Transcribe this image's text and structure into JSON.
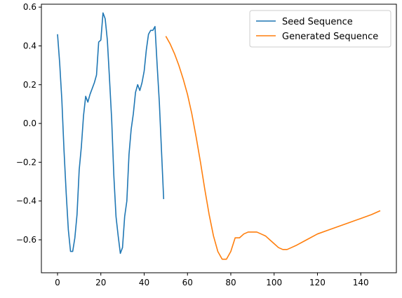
{
  "chart_data": {
    "type": "line",
    "title": "",
    "xlabel": "",
    "ylabel": "",
    "xlim": [
      -7.45,
      156.45
    ],
    "ylim": [
      -0.77,
      0.615
    ],
    "xticks": [
      0,
      20,
      40,
      60,
      80,
      100,
      120,
      140
    ],
    "yticks": [
      -0.6,
      -0.4,
      -0.2,
      0.0,
      0.2,
      0.4,
      0.6
    ],
    "ytick_labels": [
      "−0.6",
      "−0.4",
      "−0.2",
      "0.0",
      "0.2",
      "0.4",
      "0.6"
    ],
    "grid": false,
    "legend_position": "top-right",
    "series": [
      {
        "name": "Seed Sequence",
        "color": "#1f77b4",
        "x": [
          0,
          1,
          2,
          3,
          4,
          5,
          6,
          7,
          8,
          9,
          10,
          11,
          12,
          13,
          14,
          15,
          16,
          17,
          18,
          19,
          20,
          21,
          22,
          23,
          24,
          25,
          26,
          27,
          28,
          29,
          30,
          31,
          32,
          33,
          34,
          35,
          36,
          37,
          38,
          39,
          40,
          41,
          42,
          43,
          44,
          45,
          46,
          47,
          48,
          49
        ],
        "y": [
          0.46,
          0.31,
          0.12,
          -0.14,
          -0.36,
          -0.55,
          -0.66,
          -0.66,
          -0.59,
          -0.47,
          -0.24,
          -0.12,
          0.04,
          0.14,
          0.11,
          0.15,
          0.18,
          0.21,
          0.25,
          0.42,
          0.43,
          0.57,
          0.54,
          0.43,
          0.23,
          0.02,
          -0.27,
          -0.48,
          -0.58,
          -0.67,
          -0.64,
          -0.48,
          -0.4,
          -0.16,
          -0.03,
          0.05,
          0.16,
          0.2,
          0.17,
          0.21,
          0.27,
          0.38,
          0.46,
          0.48,
          0.48,
          0.5,
          0.3,
          0.11,
          -0.14,
          -0.39
        ]
      },
      {
        "name": "Generated Sequence",
        "color": "#ff7f0e",
        "x": [
          50,
          52,
          54,
          56,
          58,
          60,
          62,
          64,
          66,
          68,
          70,
          72,
          74,
          76,
          78,
          80,
          82,
          84,
          86,
          88,
          90,
          92,
          94,
          96,
          98,
          100,
          102,
          104,
          106,
          108,
          110,
          115,
          120,
          125,
          130,
          135,
          140,
          145,
          149
        ],
        "y": [
          0.45,
          0.41,
          0.36,
          0.3,
          0.23,
          0.15,
          0.05,
          -0.07,
          -0.2,
          -0.34,
          -0.47,
          -0.58,
          -0.66,
          -0.7,
          -0.7,
          -0.66,
          -0.59,
          -0.59,
          -0.57,
          -0.56,
          -0.56,
          -0.56,
          -0.57,
          -0.58,
          -0.6,
          -0.62,
          -0.64,
          -0.65,
          -0.65,
          -0.64,
          -0.63,
          -0.6,
          -0.57,
          -0.55,
          -0.53,
          -0.51,
          -0.49,
          -0.47,
          -0.45
        ]
      }
    ]
  }
}
